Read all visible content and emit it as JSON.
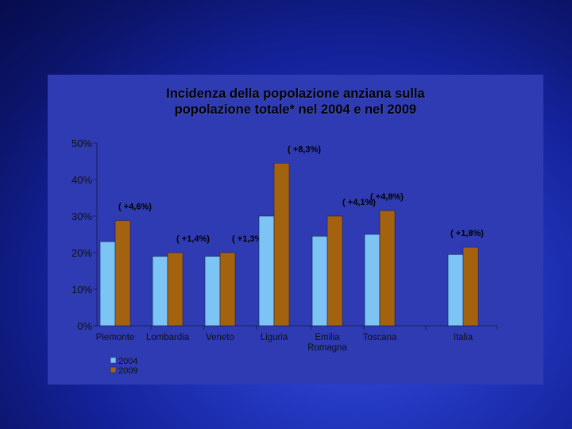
{
  "chart_data": {
    "type": "bar",
    "title_line1": "Incidenza della popolazione anziana sulla",
    "title_line2": "popolazione totale* nel 2004 e nel 2009",
    "ylim": [
      0,
      50
    ],
    "y_ticks": [
      "0%",
      "10%",
      "20%",
      "30%",
      "40%",
      "50%"
    ],
    "categories": [
      {
        "label": "Piemonte",
        "label2": "",
        "v2004": 23,
        "v2009": 28.8,
        "annotation": "( +4,6%)"
      },
      {
        "label": "Lombardia",
        "label2": "",
        "v2004": 19,
        "v2009": 20,
        "annotation": "( +1,4%)"
      },
      {
        "label": "Veneto",
        "label2": "",
        "v2004": 19,
        "v2009": 20,
        "annotation": "( +1,3%)"
      },
      {
        "label": "Liguria",
        "label2": "",
        "v2004": 30,
        "v2009": 44.5,
        "annotation": "( +8,3%)"
      },
      {
        "label": "Emilia",
        "label2": "Romagna",
        "v2004": 24.5,
        "v2009": 30,
        "annotation": "( +4,1%)"
      },
      {
        "label": "Toscana",
        "label2": "",
        "v2004": 25,
        "v2009": 31.5,
        "annotation": "( +4,8%)"
      },
      {
        "label": "Italia",
        "label2": "",
        "v2004": 19.5,
        "v2009": 21.5,
        "annotation": "( +1,8%)"
      }
    ],
    "series": [
      {
        "name": "2004",
        "color": "#7cc4f4"
      },
      {
        "name": "2009",
        "color": "#a3620e"
      }
    ],
    "grid": false,
    "legend_position": "bottom-left"
  }
}
